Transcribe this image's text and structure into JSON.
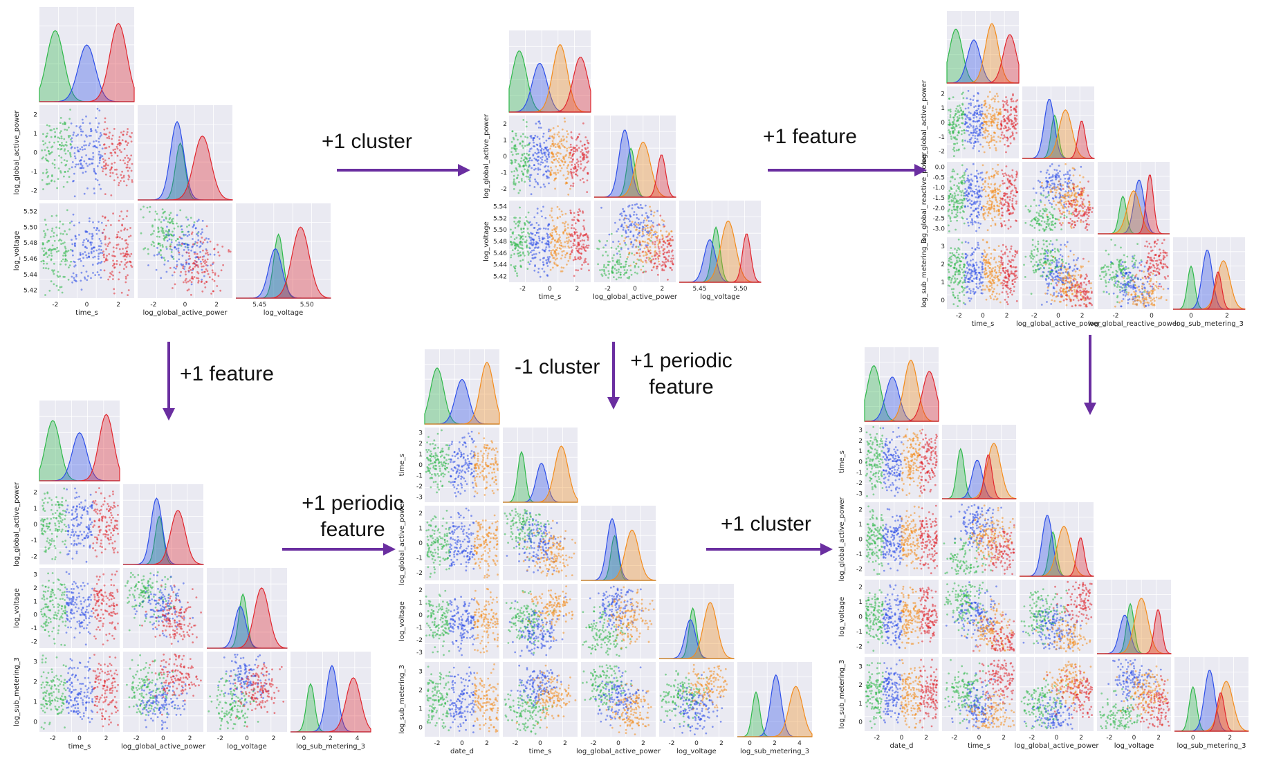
{
  "colors": {
    "green": "#2fb84a",
    "blue": "#2e4fe8",
    "red": "#e0262e",
    "orange": "#f28c1e",
    "arrow": "#6a2ea0",
    "panel": "#eaeaf2",
    "grid": "#ffffff"
  },
  "transitions": [
    {
      "id": "t1",
      "lines": [
        "+1 cluster"
      ]
    },
    {
      "id": "t2",
      "lines": [
        "+1 feature"
      ]
    },
    {
      "id": "t3",
      "lines": [
        "+1 feature"
      ]
    },
    {
      "id": "t4",
      "lines": [
        "-1 cluster"
      ]
    },
    {
      "id": "t5",
      "lines": [
        "+1 periodic",
        "feature"
      ]
    },
    {
      "id": "t6",
      "lines": [
        "+1 periodic",
        "feature"
      ]
    },
    {
      "id": "t7",
      "lines": [
        "+1 cluster"
      ]
    }
  ],
  "pairplots": [
    {
      "id": "p1",
      "features": [
        "time_s",
        "log_global_active_power",
        "log_voltage"
      ],
      "ylabels": [
        "",
        "log_global_active_power",
        "log_voltage"
      ],
      "xticks": [
        [
          "-2",
          "0",
          "2"
        ],
        [
          "-2",
          "0",
          "2"
        ],
        [
          "5.45",
          "5.50"
        ]
      ],
      "yticks": [
        [],
        [
          "2",
          "1",
          "0",
          "-1",
          "-2"
        ],
        [
          "5.52",
          "5.50",
          "5.48",
          "5.46",
          "5.44",
          "5.42"
        ]
      ],
      "clusters": [
        "green",
        "blue",
        "red"
      ]
    },
    {
      "id": "p2",
      "features": [
        "time_s",
        "log_global_active_power",
        "log_voltage"
      ],
      "ylabels": [
        "",
        "log_global_active_power",
        "log_voltage"
      ],
      "xticks": [
        [
          "-2",
          "0",
          "2"
        ],
        [
          "-2",
          "0",
          "2"
        ],
        [
          "5.45",
          "5.50"
        ]
      ],
      "yticks": [
        [],
        [
          "2",
          "1",
          "0",
          "-1",
          "-2"
        ],
        [
          "5.54",
          "5.52",
          "5.50",
          "5.48",
          "5.46",
          "5.44",
          "5.42"
        ]
      ],
      "clusters": [
        "green",
        "blue",
        "orange",
        "red"
      ]
    },
    {
      "id": "p3",
      "features": [
        "time_s",
        "log_global_active_power",
        "log_global_reactive_power",
        "log_sub_metering_3"
      ],
      "ylabels": [
        "",
        "log_global_active_power",
        "log_global_reactive_power",
        "log_sub_metering_3"
      ],
      "xticks": [
        [
          "-2",
          "0",
          "2"
        ],
        [
          "-2",
          "0",
          "2"
        ],
        [
          "-2",
          "0"
        ],
        [
          "0",
          "2"
        ]
      ],
      "yticks": [
        [],
        [
          "2",
          "1",
          "0",
          "-1",
          "-2"
        ],
        [
          "0.0",
          "-0.5",
          "-1.0",
          "-1.5",
          "-2.0",
          "-2.5",
          "-3.0"
        ],
        [
          "3",
          "2",
          "1",
          "0"
        ]
      ],
      "clusters": [
        "green",
        "blue",
        "orange",
        "red"
      ]
    },
    {
      "id": "p4",
      "features": [
        "time_s",
        "log_global_active_power",
        "log_voltage",
        "log_sub_metering_3"
      ],
      "ylabels": [
        "",
        "log_global_active_power",
        "log_voltage",
        "log_sub_metering_3"
      ],
      "xticks": [
        [
          "-2",
          "0",
          "2"
        ],
        [
          "-2",
          "0",
          "2"
        ],
        [
          "-2",
          "0",
          "2"
        ],
        [
          "0",
          "2",
          "4"
        ]
      ],
      "yticks": [
        [],
        [
          "2",
          "1",
          "0",
          "-1",
          "-2"
        ],
        [
          "3",
          "2",
          "1",
          "0",
          "-1",
          "-2"
        ],
        [
          "3",
          "2",
          "1",
          "0"
        ]
      ],
      "clusters": [
        "green",
        "blue",
        "red"
      ]
    },
    {
      "id": "p5",
      "features": [
        "date_d",
        "time_s",
        "log_global_active_power",
        "log_voltage",
        "log_sub_metering_3"
      ],
      "ylabels": [
        "",
        "time_s",
        "log_global_active_power",
        "log_voltage",
        "log_sub_metering_3"
      ],
      "xticks": [
        [
          "-2",
          "0",
          "2"
        ],
        [
          "-2",
          "0",
          "2"
        ],
        [
          "-2",
          "0",
          "2"
        ],
        [
          "-2",
          "0",
          "2"
        ],
        [
          "0",
          "2",
          "4"
        ]
      ],
      "yticks": [
        [],
        [
          "3",
          "2",
          "1",
          "0",
          "-1",
          "-2",
          "-3"
        ],
        [
          "2",
          "1",
          "0",
          "-1",
          "-2"
        ],
        [
          "2",
          "1",
          "0",
          "-1",
          "-2",
          "-3"
        ],
        [
          "3",
          "2",
          "1",
          "0"
        ]
      ],
      "clusters": [
        "green",
        "blue",
        "orange"
      ]
    },
    {
      "id": "p6",
      "features": [
        "date_d",
        "time_s",
        "log_global_active_power",
        "log_voltage",
        "log_sub_metering_3"
      ],
      "ylabels": [
        "",
        "time_s",
        "log_global_active_power",
        "log_voltage",
        "log_sub_metering_3"
      ],
      "xticks": [
        [
          "-2",
          "0",
          "2"
        ],
        [
          "-2",
          "0",
          "2"
        ],
        [
          "-2",
          "0",
          "2"
        ],
        [
          "-2",
          "0",
          "2"
        ],
        [
          "0",
          "2"
        ]
      ],
      "yticks": [
        [],
        [
          "3",
          "2",
          "1",
          "0",
          "-1",
          "-2",
          "-3"
        ],
        [
          "2",
          "1",
          "0",
          "-1",
          "-2"
        ],
        [
          "2",
          "1",
          "0",
          "-1",
          "-2"
        ],
        [
          "3",
          "2",
          "1",
          "0"
        ]
      ],
      "clusters": [
        "green",
        "blue",
        "orange",
        "red"
      ]
    }
  ]
}
